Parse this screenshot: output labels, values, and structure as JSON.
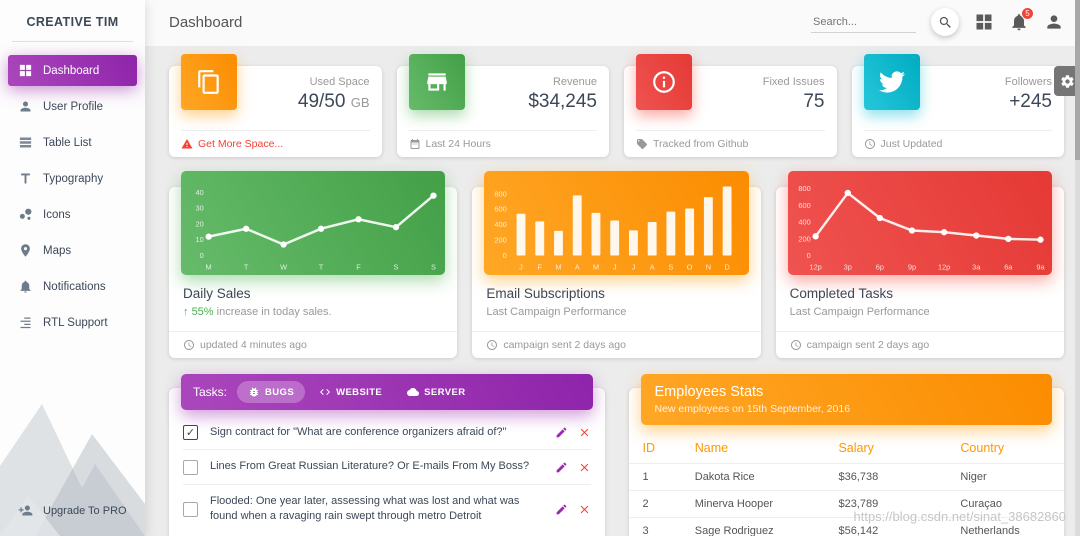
{
  "colors": {
    "primary": "#9c27b0",
    "orange": "#ff9800",
    "green": "#4caf50",
    "red": "#f44336",
    "cyan": "#00bcd4"
  },
  "sidebar": {
    "brand": "CREATIVE TIM",
    "items": [
      {
        "label": "Dashboard",
        "icon": "dashboard-icon",
        "active": true
      },
      {
        "label": "User Profile",
        "icon": "person-icon",
        "active": false
      },
      {
        "label": "Table List",
        "icon": "table-list-icon",
        "active": false
      },
      {
        "label": "Typography",
        "icon": "typography-icon",
        "active": false
      },
      {
        "label": "Icons",
        "icon": "icons-icon",
        "active": false
      },
      {
        "label": "Maps",
        "icon": "map-pin-icon",
        "active": false
      },
      {
        "label": "Notifications",
        "icon": "bell-icon",
        "active": false
      },
      {
        "label": "RTL Support",
        "icon": "rtl-icon",
        "active": false
      }
    ],
    "upgrade_label": "Upgrade To PRO"
  },
  "topbar": {
    "title": "Dashboard",
    "search_placeholder": "Search...",
    "notification_count": "5"
  },
  "stats": [
    {
      "icon": "copy-icon",
      "color": "#ff9800",
      "category": "Used Space",
      "value": "49/50",
      "unit": "GB",
      "footer": "Get More Space...",
      "footer_icon": "warning-icon",
      "footer_color": "#f44336"
    },
    {
      "icon": "store-icon",
      "color": "#4caf50",
      "category": "Revenue",
      "value": "$34,245",
      "unit": "",
      "footer": "Last 24 Hours",
      "footer_icon": "calendar-icon"
    },
    {
      "icon": "info-icon",
      "color": "#f44336",
      "category": "Fixed Issues",
      "value": "75",
      "unit": "",
      "footer": "Tracked from Github",
      "footer_icon": "tag-icon"
    },
    {
      "icon": "twitter-icon",
      "color": "#00bcd4",
      "category": "Followers",
      "value": "+245",
      "unit": "",
      "footer": "Just Updated",
      "footer_icon": "clock-icon"
    }
  ],
  "chart_data": [
    {
      "type": "line",
      "title": "Daily Sales",
      "categories": [
        "M",
        "T",
        "W",
        "T",
        "F",
        "S",
        "S"
      ],
      "values": [
        12,
        17,
        7,
        17,
        23,
        18,
        38
      ],
      "ylim": [
        0,
        45
      ],
      "yticks": [
        0,
        10,
        20,
        30,
        40
      ],
      "color": "#4caf50"
    },
    {
      "type": "bar",
      "title": "Email Subscriptions",
      "categories": [
        "J",
        "F",
        "M",
        "A",
        "M",
        "J",
        "J",
        "A",
        "S",
        "O",
        "N",
        "D"
      ],
      "values": [
        542,
        443,
        320,
        780,
        553,
        453,
        326,
        434,
        568,
        610,
        756,
        895
      ],
      "ylim": [
        0,
        920
      ],
      "yticks": [
        0,
        200,
        400,
        600,
        800
      ],
      "color": "#ff9800"
    },
    {
      "type": "line",
      "title": "Completed Tasks",
      "categories": [
        "12p",
        "3p",
        "6p",
        "9p",
        "12p",
        "3a",
        "6a",
        "9a"
      ],
      "values": [
        230,
        750,
        450,
        300,
        280,
        240,
        200,
        190
      ],
      "ylim": [
        0,
        850
      ],
      "yticks": [
        0,
        200,
        400,
        600,
        800
      ],
      "color": "#f44336"
    }
  ],
  "chart_cards": [
    {
      "sub_arrow": "↑",
      "sub_highlight": "55%",
      "sub_rest": "increase in today sales.",
      "footer": "updated 4 minutes ago"
    },
    {
      "subtitle": "Last Campaign Performance",
      "footer": "campaign sent 2 days ago"
    },
    {
      "subtitle": "Last Campaign Performance",
      "footer": "campaign sent 2 days ago"
    }
  ],
  "tasks": {
    "label": "Tasks:",
    "tabs": [
      {
        "label": "BUGS",
        "icon": "bug-icon",
        "active": true
      },
      {
        "label": "WEBSITE",
        "icon": "code-icon",
        "active": false
      },
      {
        "label": "SERVER",
        "icon": "cloud-icon",
        "active": false
      }
    ],
    "items": [
      {
        "text": "Sign contract for \"What are conference organizers afraid of?\"",
        "checked": true,
        "check": "✓"
      },
      {
        "text": "Lines From Great Russian Literature? Or E-mails From My Boss?",
        "checked": false,
        "check": ""
      },
      {
        "text": "Flooded: One year later, assessing what was lost and what was found when a ravaging rain swept through metro Detroit",
        "checked": false,
        "check": ""
      }
    ]
  },
  "employees": {
    "title": "Employees Stats",
    "subtitle": "New employees on 15th September, 2016",
    "columns": [
      "ID",
      "Name",
      "Salary",
      "Country"
    ],
    "rows": [
      [
        "1",
        "Dakota Rice",
        "$36,738",
        "Niger"
      ],
      [
        "2",
        "Minerva Hooper",
        "$23,789",
        "Curaçao"
      ],
      [
        "3",
        "Sage Rodriguez",
        "$56,142",
        "Netherlands"
      ]
    ]
  },
  "watermark": "https://blog.csdn.net/sinat_38682860"
}
